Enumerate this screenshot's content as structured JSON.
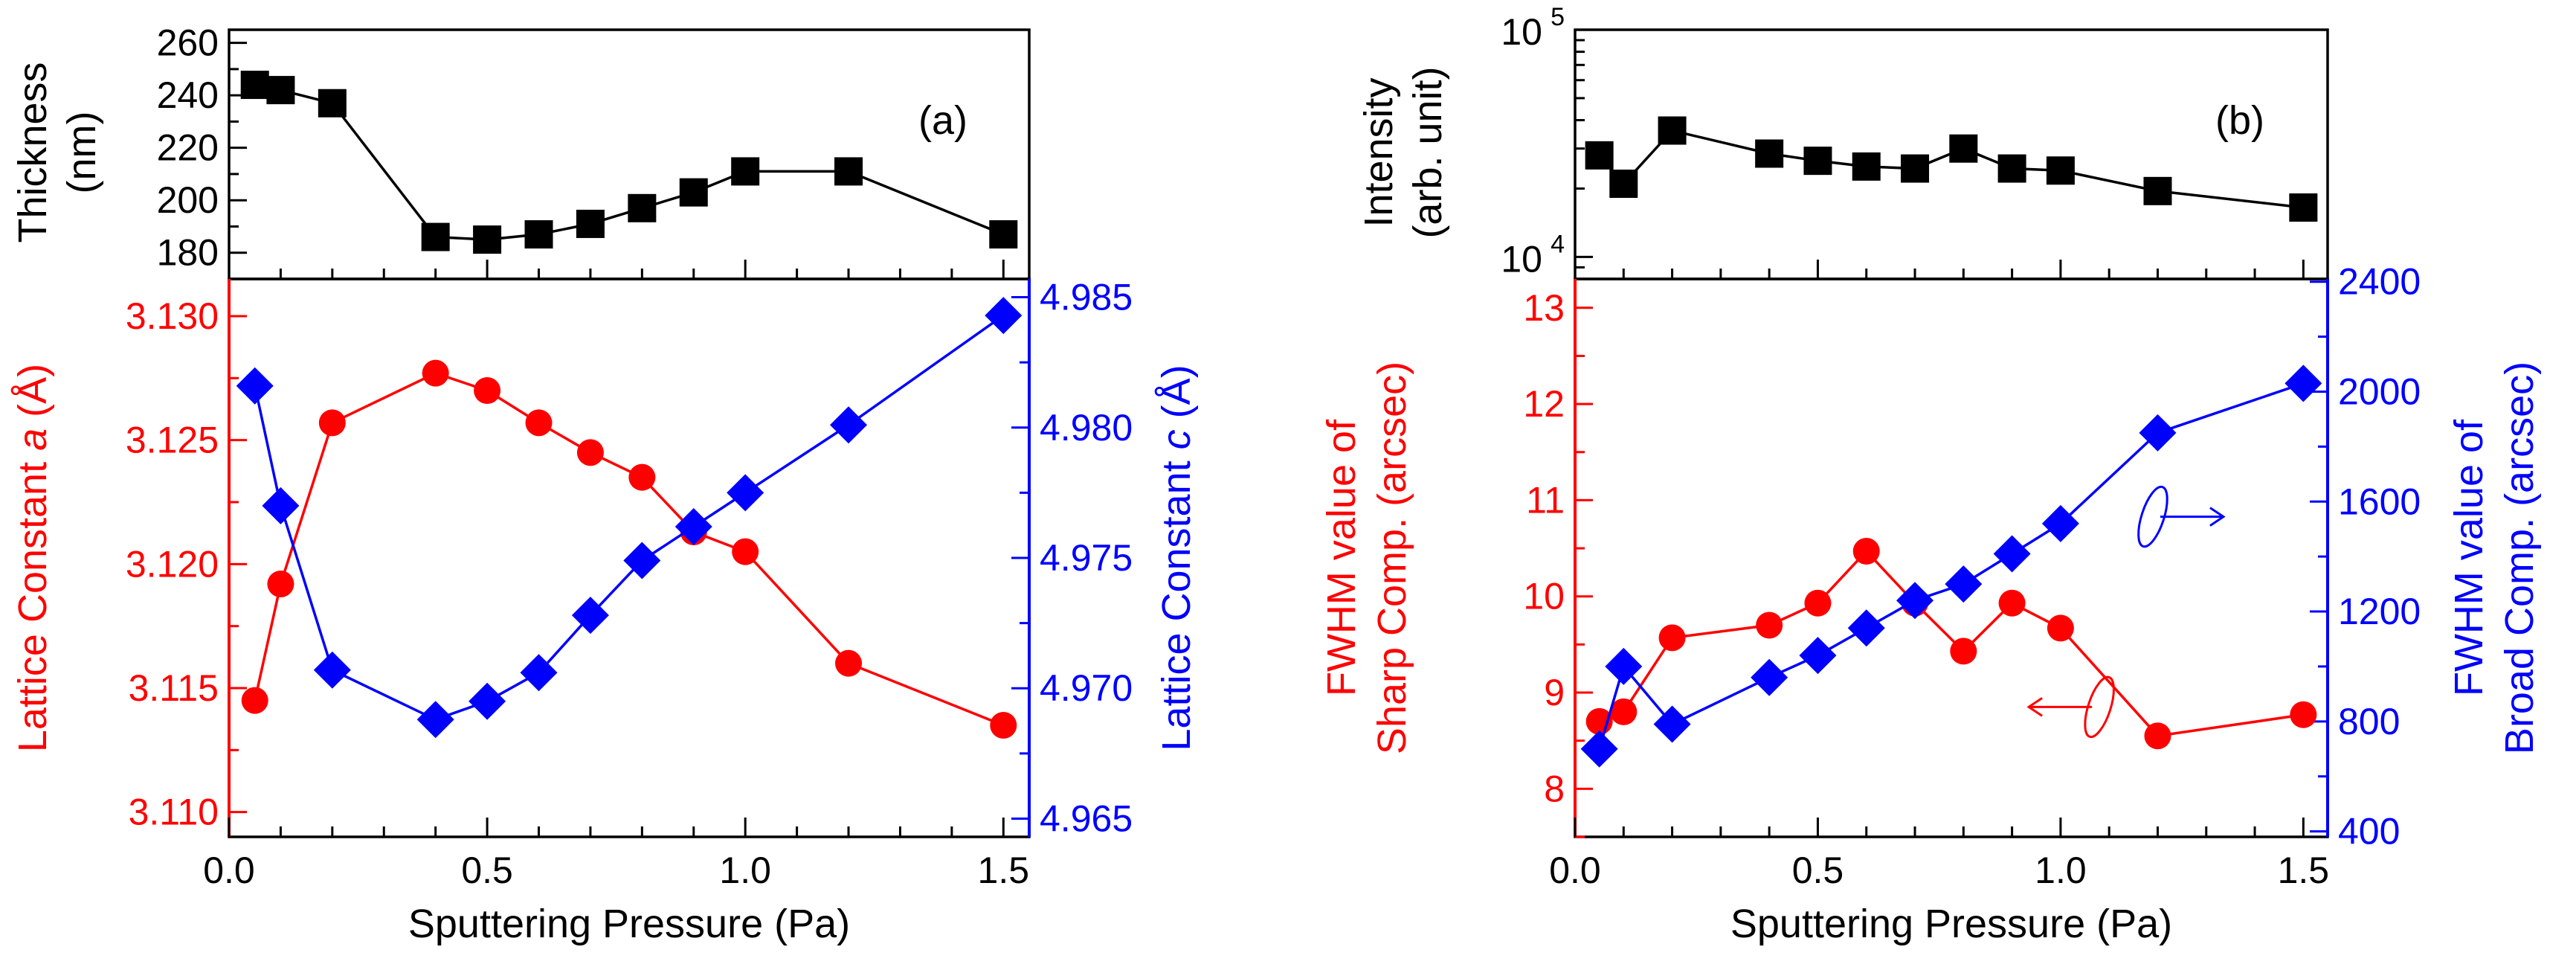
{
  "chart_data": [
    {
      "id": "a_top",
      "type": "line",
      "panel_label": "(a)",
      "ylabel": [
        "Thickness",
        "(nm)"
      ],
      "xlim": [
        0,
        1.55
      ],
      "ylim": [
        170,
        265
      ],
      "yticks": [
        "260",
        "240",
        "220",
        "200",
        "180"
      ],
      "ytick_values": [
        260,
        240,
        220,
        200,
        180
      ],
      "series": [
        {
          "name": "Thickness",
          "color": "#000000",
          "marker": "square",
          "x": [
            0.05,
            0.1,
            0.2,
            0.4,
            0.5,
            0.6,
            0.7,
            0.8,
            0.9,
            1.0,
            1.2,
            1.5
          ],
          "y": [
            244,
            242,
            237,
            186,
            185,
            187,
            191,
            197,
            203,
            211,
            211,
            187
          ]
        }
      ]
    },
    {
      "id": "a_bottom",
      "type": "line",
      "xlabel": "Sputtering Pressure (Pa)",
      "xlim": [
        0,
        1.55
      ],
      "xticks": [
        "0.0",
        "0.5",
        "1.0",
        "1.5"
      ],
      "xtick_values": [
        0,
        0.5,
        1.0,
        1.5
      ],
      "ylabel_left": "Lattice Constant a (Å)",
      "ylabel_left_parts": [
        "Lattice Constant ",
        "a",
        " (Å)"
      ],
      "ylim_left": [
        3.109,
        3.1315
      ],
      "yticks_left": [
        "3.130",
        "3.125",
        "3.120",
        "3.115",
        "3.110"
      ],
      "ytick_values_left": [
        3.13,
        3.125,
        3.12,
        3.115,
        3.11
      ],
      "ylabel_right": "Lattice Constant c (Å)",
      "ylabel_right_parts": [
        "Lattice Constant ",
        "c",
        " (Å)"
      ],
      "ylim_right": [
        4.9643,
        4.9857
      ],
      "yticks_right": [
        "4.985",
        "4.980",
        "4.975",
        "4.970",
        "4.965"
      ],
      "ytick_values_right": [
        4.985,
        4.98,
        4.975,
        4.97,
        4.965
      ],
      "series": [
        {
          "name": "Lattice Constant a",
          "axis": "left",
          "color": "#ff0000",
          "marker": "circle",
          "x": [
            0.05,
            0.1,
            0.2,
            0.4,
            0.5,
            0.6,
            0.7,
            0.8,
            0.9,
            1.0,
            1.2,
            1.5
          ],
          "y": [
            3.1145,
            3.1192,
            3.1257,
            3.1277,
            3.127,
            3.1257,
            3.1245,
            3.1235,
            3.1213,
            3.1205,
            3.116,
            3.1135
          ]
        },
        {
          "name": "Lattice Constant c",
          "axis": "right",
          "color": "#0000ff",
          "marker": "diamond",
          "x": [
            0.05,
            0.1,
            0.2,
            0.4,
            0.5,
            0.6,
            0.7,
            0.8,
            0.9,
            1.0,
            1.2,
            1.5
          ],
          "y": [
            4.9816,
            4.977,
            4.9707,
            4.9688,
            4.9695,
            4.9706,
            4.9728,
            4.9749,
            4.9762,
            4.9775,
            4.9801,
            4.9843
          ]
        }
      ]
    },
    {
      "id": "b_top",
      "type": "line",
      "panel_label": "(b)",
      "ylabel": [
        "Intensity",
        "(arb. unit)"
      ],
      "yscale": "log",
      "xlim": [
        0,
        1.55
      ],
      "ylim": [
        8000,
        100000
      ],
      "ytick_values": [
        10000,
        100000
      ],
      "yticks": [
        {
          "base": "10",
          "exp": "5"
        },
        {
          "base": "10",
          "exp": "4"
        }
      ],
      "series": [
        {
          "name": "Intensity",
          "color": "#000000",
          "marker": "square",
          "x": [
            0.05,
            0.1,
            0.2,
            0.4,
            0.5,
            0.6,
            0.7,
            0.8,
            0.9,
            1.0,
            1.2,
            1.5
          ],
          "y": [
            28000,
            21000,
            36000,
            28500,
            26500,
            25000,
            24500,
            30000,
            24500,
            24000,
            19500,
            16500
          ]
        }
      ]
    },
    {
      "id": "b_bottom",
      "type": "line",
      "xlabel": "Sputtering Pressure (Pa)",
      "xlim": [
        0,
        1.55
      ],
      "xticks": [
        "0.0",
        "0.5",
        "1.0",
        "1.5"
      ],
      "xtick_values": [
        0,
        0.5,
        1.0,
        1.5
      ],
      "ylabel_left": [
        "FWHM value of",
        "Sharp Comp. (arcsec)"
      ],
      "ylim_left": [
        7.5,
        13.3
      ],
      "yticks_left": [
        "13",
        "12",
        "11",
        "10",
        "9",
        "8"
      ],
      "ytick_values_left": [
        13,
        12,
        11,
        10,
        9,
        8
      ],
      "ylabel_right": [
        "FWHM value of",
        "Broad Comp. (arcsec)"
      ],
      "ylim_right": [
        380,
        2410
      ],
      "yticks_right": [
        "2400",
        "2000",
        "1600",
        "1200",
        "800",
        "400"
      ],
      "ytick_values_right": [
        2400,
        2000,
        1600,
        1200,
        800,
        400
      ],
      "series": [
        {
          "name": "Sharp Comp.",
          "axis": "left",
          "color": "#ff0000",
          "marker": "circle",
          "x": [
            0.05,
            0.1,
            0.2,
            0.4,
            0.5,
            0.6,
            0.7,
            0.8,
            0.9,
            1.0,
            1.2,
            1.5
          ],
          "y": [
            8.7,
            8.8,
            9.57,
            9.7,
            9.93,
            10.47,
            9.93,
            9.43,
            9.93,
            9.67,
            8.55,
            8.77
          ]
        },
        {
          "name": "Broad Comp.",
          "axis": "right",
          "color": "#0000ff",
          "marker": "diamond",
          "x": [
            0.05,
            0.1,
            0.2,
            0.4,
            0.5,
            0.6,
            0.7,
            0.8,
            0.9,
            1.0,
            1.2,
            1.5
          ],
          "y": [
            700,
            1000,
            790,
            960,
            1040,
            1140,
            1240,
            1300,
            1410,
            1520,
            1850,
            2030
          ]
        }
      ],
      "annotations": [
        {
          "target": "left",
          "at_x": 1.08,
          "at_y": 8.85
        },
        {
          "target": "right",
          "at_x": 1.19,
          "at_y": 1545
        }
      ]
    }
  ]
}
